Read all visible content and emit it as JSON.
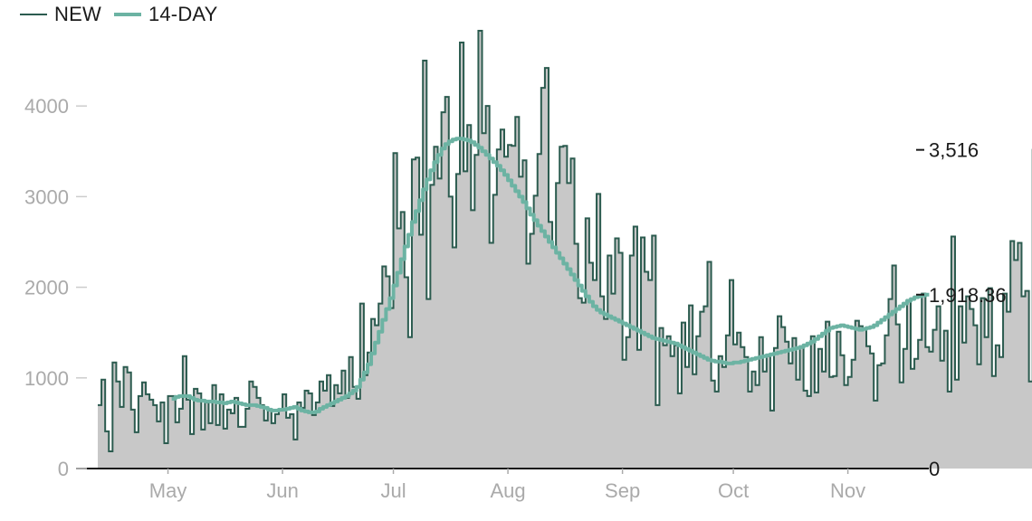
{
  "legend": [
    {
      "label": "NEW",
      "color": "#2b5b4f"
    },
    {
      "label": "14-DAY",
      "color": "#6cb3a3"
    }
  ],
  "chart_data": {
    "type": "line",
    "subtype": "stepped area with moving-average line",
    "title": "",
    "xlabel": "",
    "ylabel": "",
    "x_start": "2020-04-12",
    "x_end": "2020-11-17",
    "ylim": [
      0,
      4800
    ],
    "y_ticks": [
      0,
      1000,
      2000,
      3000,
      4000
    ],
    "x_ticks": [
      "May",
      "Jun",
      "Jul",
      "Aug",
      "Sep",
      "Oct",
      "Nov"
    ],
    "x_tick_dates": [
      "2020-05-01",
      "2020-06-01",
      "2020-07-01",
      "2020-08-01",
      "2020-09-01",
      "2020-10-01",
      "2020-11-01"
    ],
    "grid": false,
    "legend_position": "top-left",
    "series": [
      {
        "name": "NEW",
        "color": "#2b5b4f",
        "fill": "#c8c8c8",
        "values": [
          700,
          980,
          410,
          190,
          1170,
          960,
          680,
          1120,
          1060,
          650,
          400,
          800,
          950,
          820,
          760,
          700,
          520,
          730,
          280,
          800,
          800,
          510,
          660,
          1240,
          760,
          380,
          880,
          830,
          430,
          730,
          500,
          920,
          480,
          820,
          440,
          650,
          610,
          780,
          460,
          460,
          660,
          960,
          900,
          780,
          700,
          530,
          640,
          500,
          600,
          640,
          820,
          560,
          600,
          320,
          730,
          670,
          860,
          830,
          590,
          730,
          960,
          860,
          1030,
          690,
          920,
          830,
          1080,
          780,
          1230,
          900,
          770,
          1820,
          1030,
          1280,
          1650,
          1580,
          1820,
          2230,
          2120,
          1770,
          3480,
          2650,
          2830,
          2110,
          1450,
          3410,
          3430,
          2580,
          4500,
          1870,
          3130,
          3550,
          3200,
          3930,
          4100,
          3000,
          2440,
          3250,
          4700,
          3280,
          3790,
          2850,
          3460,
          4830,
          3700,
          4000,
          2490,
          3020,
          3520,
          3740,
          3440,
          3570,
          3560,
          3880,
          3220,
          3400,
          2260,
          2590,
          3010,
          3470,
          4200,
          4420,
          2720,
          2440,
          3150,
          3550,
          3560,
          3150,
          3420,
          2480,
          1880,
          1830,
          2760,
          2270,
          2080,
          3030,
          1900,
          1650,
          2350,
          1930,
          2540,
          2380,
          1200,
          1450,
          2350,
          2670,
          1310,
          2550,
          2170,
          2080,
          2570,
          700,
          1550,
          1360,
          1460,
          1240,
          1360,
          830,
          1610,
          1120,
          1800,
          1040,
          1460,
          1730,
          1790,
          2280,
          970,
          850,
          1240,
          1120,
          1470,
          2080,
          1370,
          1500,
          1340,
          1230,
          850,
          1070,
          920,
          1450,
          1070,
          1240,
          640,
          1330,
          1680,
          1560,
          1400,
          1160,
          1440,
          980,
          1350,
          860,
          800,
          1460,
          840,
          1320,
          1070,
          1620,
          1010,
          1020,
          1510,
          1250,
          920,
          1010,
          1200,
          1630,
          1570,
          1540,
          1350,
          1270,
          750,
          1140,
          1160,
          1470,
          1870,
          2240,
          1590,
          950,
          1320,
          1860,
          1100,
          1210,
          1420,
          1930,
          1340,
          1290,
          1530,
          1790,
          1190,
          1520,
          850,
          2560,
          980,
          1790,
          1390,
          1900,
          1760,
          1580,
          1150,
          1880,
          1450,
          1990,
          1020,
          1360,
          1230,
          1930,
          1730,
          2510,
          2300,
          2490,
          1900,
          1960,
          960,
          3516
        ]
      },
      {
        "name": "14-DAY",
        "color": "#6cb3a3",
        "values": [
          null,
          null,
          null,
          null,
          null,
          null,
          null,
          null,
          null,
          null,
          null,
          null,
          null,
          null,
          null,
          null,
          null,
          null,
          null,
          null,
          770,
          790,
          800,
          800,
          800,
          780,
          760,
          750,
          750,
          740,
          740,
          740,
          730,
          730,
          720,
          730,
          740,
          730,
          720,
          710,
          700,
          700,
          700,
          690,
          680,
          670,
          650,
          640,
          640,
          650,
          650,
          660,
          670,
          680,
          660,
          640,
          630,
          620,
          620,
          630,
          660,
          680,
          700,
          720,
          740,
          760,
          780,
          800,
          830,
          860,
          900,
          980,
          1060,
          1150,
          1270,
          1390,
          1510,
          1640,
          1760,
          1880,
          2020,
          2160,
          2310,
          2450,
          2580,
          2720,
          2840,
          2960,
          3080,
          3190,
          3290,
          3380,
          3460,
          3530,
          3580,
          3610,
          3630,
          3640,
          3640,
          3630,
          3620,
          3600,
          3570,
          3540,
          3500,
          3460,
          3420,
          3380,
          3340,
          3290,
          3240,
          3180,
          3120,
          3060,
          3000,
          2940,
          2870,
          2800,
          2740,
          2680,
          2620,
          2560,
          2500,
          2440,
          2380,
          2320,
          2260,
          2200,
          2140,
          2080,
          2020,
          1960,
          1900,
          1840,
          1790,
          1750,
          1720,
          1700,
          1680,
          1660,
          1640,
          1620,
          1600,
          1580,
          1560,
          1540,
          1520,
          1500,
          1480,
          1460,
          1440,
          1430,
          1420,
          1410,
          1400,
          1390,
          1380,
          1360,
          1340,
          1320,
          1300,
          1280,
          1260,
          1240,
          1220,
          1200,
          1190,
          1180,
          1180,
          1170,
          1160,
          1160,
          1170,
          1170,
          1180,
          1190,
          1200,
          1210,
          1220,
          1230,
          1240,
          1250,
          1260,
          1270,
          1280,
          1290,
          1300,
          1310,
          1320,
          1330,
          1340,
          1360,
          1380,
          1400,
          1430,
          1460,
          1490,
          1520,
          1550,
          1560,
          1570,
          1580,
          1570,
          1560,
          1550,
          1540,
          1530,
          1540,
          1550,
          1560,
          1580,
          1610,
          1640,
          1670,
          1700,
          1730,
          1760,
          1790,
          1820,
          1850,
          1870,
          1890,
          1900,
          1910,
          1918.36
        ]
      }
    ],
    "right_axis_labels": [
      {
        "label": "3,516",
        "value": 3516,
        "color": "#1a1a1a"
      },
      {
        "label": "1,918.36",
        "value": 1918.36,
        "color": "#1a1a1a"
      },
      {
        "label": "0",
        "value": 0,
        "color": "#1a1a1a"
      }
    ],
    "colors": {
      "axis_text": "#aaaaaa",
      "axis_line": "#1a1a1a",
      "area": "#c8c8c8"
    }
  }
}
